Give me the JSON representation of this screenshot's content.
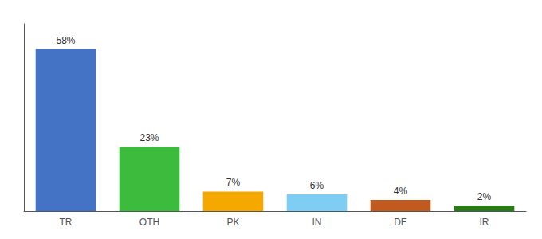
{
  "chart_data": {
    "type": "bar",
    "categories": [
      "TR",
      "OTH",
      "PK",
      "IN",
      "DE",
      "IR"
    ],
    "values": [
      58,
      23,
      7,
      6,
      4,
      2
    ],
    "value_labels": [
      "58%",
      "23%",
      "7%",
      "6%",
      "4%",
      "2%"
    ],
    "data_labels": true,
    "colors": [
      "#4472c4",
      "#3dbb3d",
      "#f5a800",
      "#7ecef4",
      "#c05a1f",
      "#2a7a1a"
    ],
    "ylim": [
      0,
      67
    ],
    "tick_labels": "x",
    "grid": false
  }
}
